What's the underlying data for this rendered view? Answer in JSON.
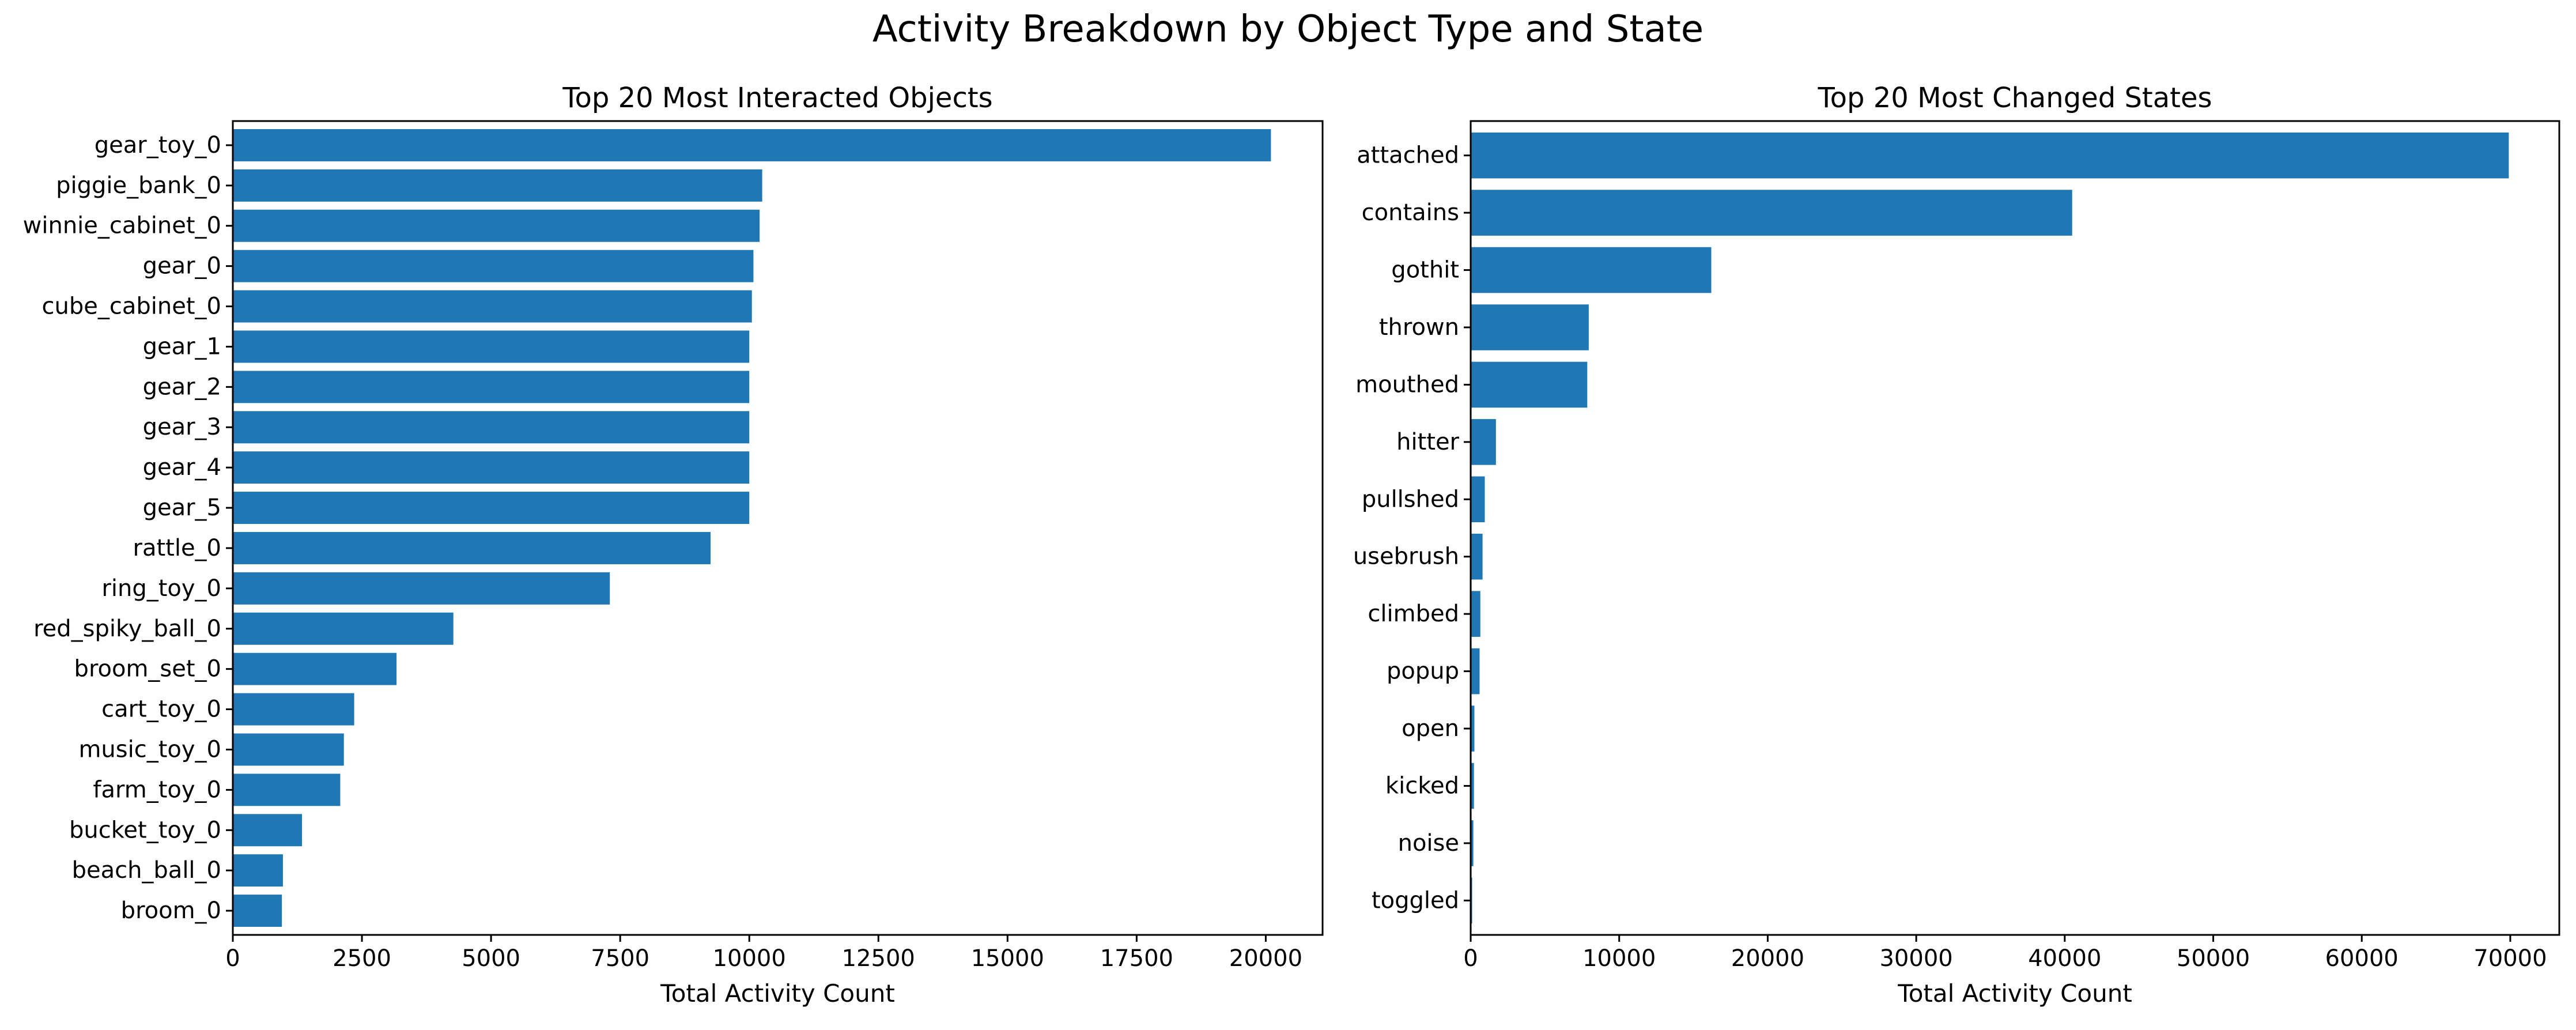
{
  "figure": {
    "title": "Activity Breakdown by Object Type and State",
    "bar_color": "#1f77b4"
  },
  "chart_data": [
    {
      "type": "bar",
      "orientation": "horizontal",
      "title": "Top 20 Most Interacted Objects",
      "xlabel": "Total Activity Count",
      "ylabel": "",
      "xlim": [
        0,
        21100
      ],
      "xticks": [
        0,
        2500,
        5000,
        7500,
        10000,
        12500,
        15000,
        17500,
        20000
      ],
      "grid": false,
      "categories": [
        "gear_toy_0",
        "piggie_bank_0",
        "winnie_cabinet_0",
        "gear_0",
        "cube_cabinet_0",
        "gear_1",
        "gear_2",
        "gear_3",
        "gear_4",
        "gear_5",
        "rattle_0",
        "ring_toy_0",
        "red_spiky_ball_0",
        "broom_set_0",
        "cart_toy_0",
        "music_toy_0",
        "farm_toy_0",
        "bucket_toy_0",
        "beach_ball_0",
        "broom_0"
      ],
      "values": [
        20100,
        10250,
        10200,
        10080,
        10050,
        10000,
        10000,
        10000,
        10000,
        10000,
        9250,
        7300,
        4270,
        3170,
        2350,
        2150,
        2080,
        1340,
        970,
        950
      ]
    },
    {
      "type": "bar",
      "orientation": "horizontal",
      "title": "Top 20 Most Changed States",
      "xlabel": "Total Activity Count",
      "ylabel": "",
      "xlim": [
        0,
        73300
      ],
      "xticks": [
        0,
        10000,
        20000,
        30000,
        40000,
        50000,
        60000,
        70000
      ],
      "grid": false,
      "categories": [
        "attached",
        "contains",
        "gothit",
        "thrown",
        "mouthed",
        "hitter",
        "pullshed",
        "usebrush",
        "climbed",
        "popup",
        "open",
        "kicked",
        "noise",
        "toggled"
      ],
      "values": [
        69900,
        40500,
        16200,
        7950,
        7850,
        1700,
        950,
        800,
        650,
        600,
        250,
        220,
        180,
        100
      ]
    }
  ]
}
